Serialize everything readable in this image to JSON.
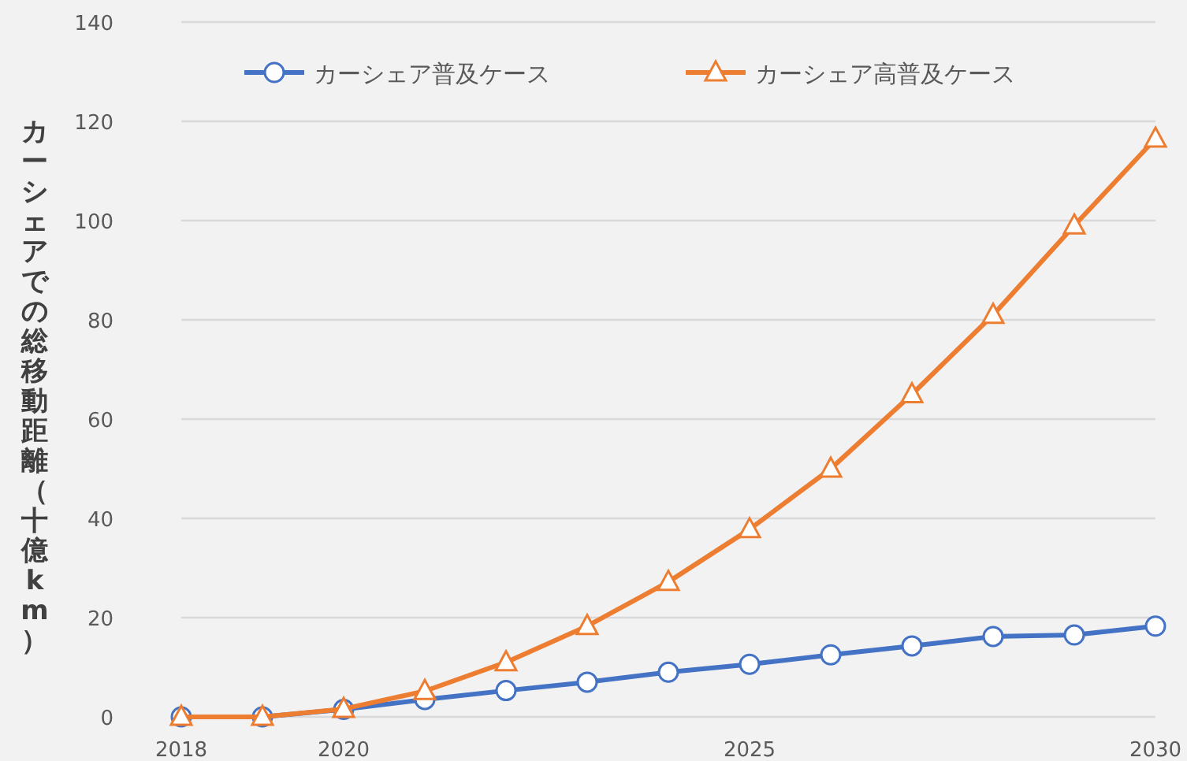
{
  "chart_data": {
    "type": "line",
    "ylabel": "カーシェアでの総移動距離（十億km）",
    "x": [
      2018,
      2019,
      2020,
      2021,
      2022,
      2023,
      2024,
      2025,
      2026,
      2027,
      2028,
      2029,
      2030
    ],
    "series": [
      {
        "name": "カーシェア普及ケース",
        "color": "#4472c4",
        "marker": "circle",
        "values": [
          0,
          0,
          1.5,
          3.5,
          5.3,
          7,
          9,
          10.6,
          12.5,
          14.3,
          16.2,
          16.5,
          18.3
        ]
      },
      {
        "name": "カーシェア高普及ケース",
        "color": "#ed7d31",
        "marker": "triangle",
        "values": [
          0,
          0,
          1.6,
          5.2,
          11,
          18.3,
          27.2,
          37.8,
          50,
          65,
          81,
          99,
          116.5
        ]
      }
    ],
    "xlim": [
      2018,
      2030
    ],
    "xticks": [
      2018,
      2020,
      2025,
      2030
    ],
    "ylim": [
      0,
      140
    ],
    "yticks": [
      0,
      20,
      40,
      60,
      80,
      100,
      120,
      140
    ],
    "grid": "y",
    "legend": "top"
  }
}
